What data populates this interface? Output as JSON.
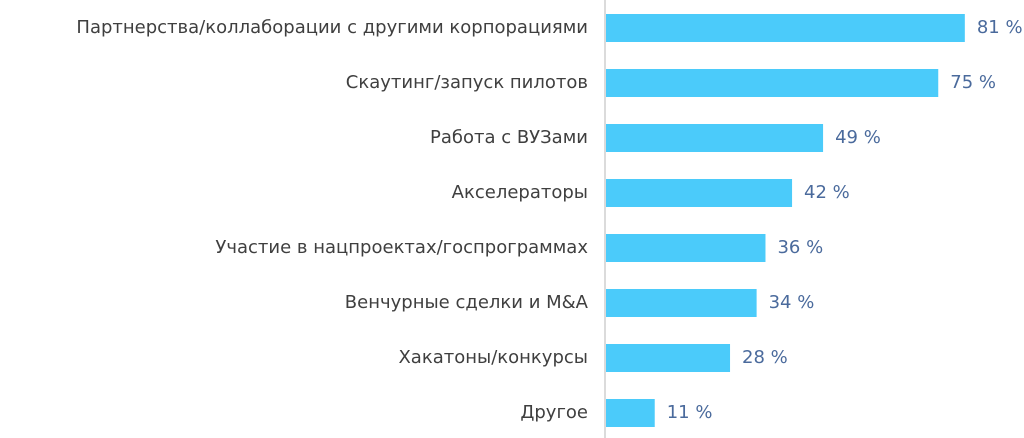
{
  "chart_data": {
    "type": "barh",
    "categories": [
      "Партнерства/коллаборации с другими корпорациями",
      "Скаутинг/запуск пилотов",
      "Работа с ВУЗами",
      "Акселераторы",
      "Участие в нацпроектах/госпрограммах",
      "Венчурные сделки и M&A",
      "Хакатоны/конкурсы",
      "Другое"
    ],
    "values": [
      81,
      75,
      49,
      42,
      36,
      34,
      28,
      11
    ],
    "value_labels": [
      "81 %",
      "75 %",
      "49 %",
      "42 %",
      "36 %",
      "34 %",
      "28 %",
      "11 %"
    ],
    "color": "#4bcbfa"
  }
}
